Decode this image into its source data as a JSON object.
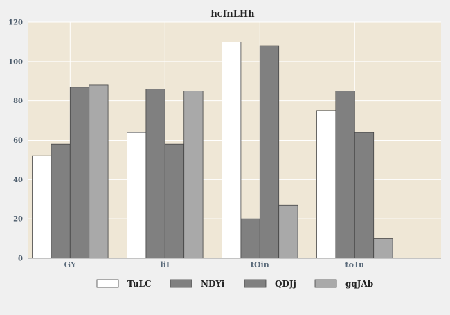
{
  "chart_data": {
    "type": "bar",
    "title": "hcfnLHh",
    "xlabel": "",
    "ylabel": "",
    "categories": [
      "GY",
      "liI",
      "tOin",
      "toTu"
    ],
    "ylim": [
      0,
      120
    ],
    "yticks": [
      0,
      20,
      40,
      60,
      80,
      100,
      120
    ],
    "grid": true,
    "legend_position": "bottom",
    "series": [
      {
        "name": "TuLC",
        "values": [
          52,
          64,
          110,
          75
        ],
        "color": "#ffffff"
      },
      {
        "name": "NDYi",
        "values": [
          58,
          86,
          20,
          85
        ],
        "color": "#808080"
      },
      {
        "name": "QDJj",
        "values": [
          87,
          58,
          108,
          64
        ],
        "color": "#808080"
      },
      {
        "name": "gqJAb",
        "values": [
          88,
          85,
          27,
          10
        ],
        "color": "#a9a9a9"
      }
    ],
    "plot_background": "#efe7d6",
    "page_background": "#f0f0f0"
  }
}
